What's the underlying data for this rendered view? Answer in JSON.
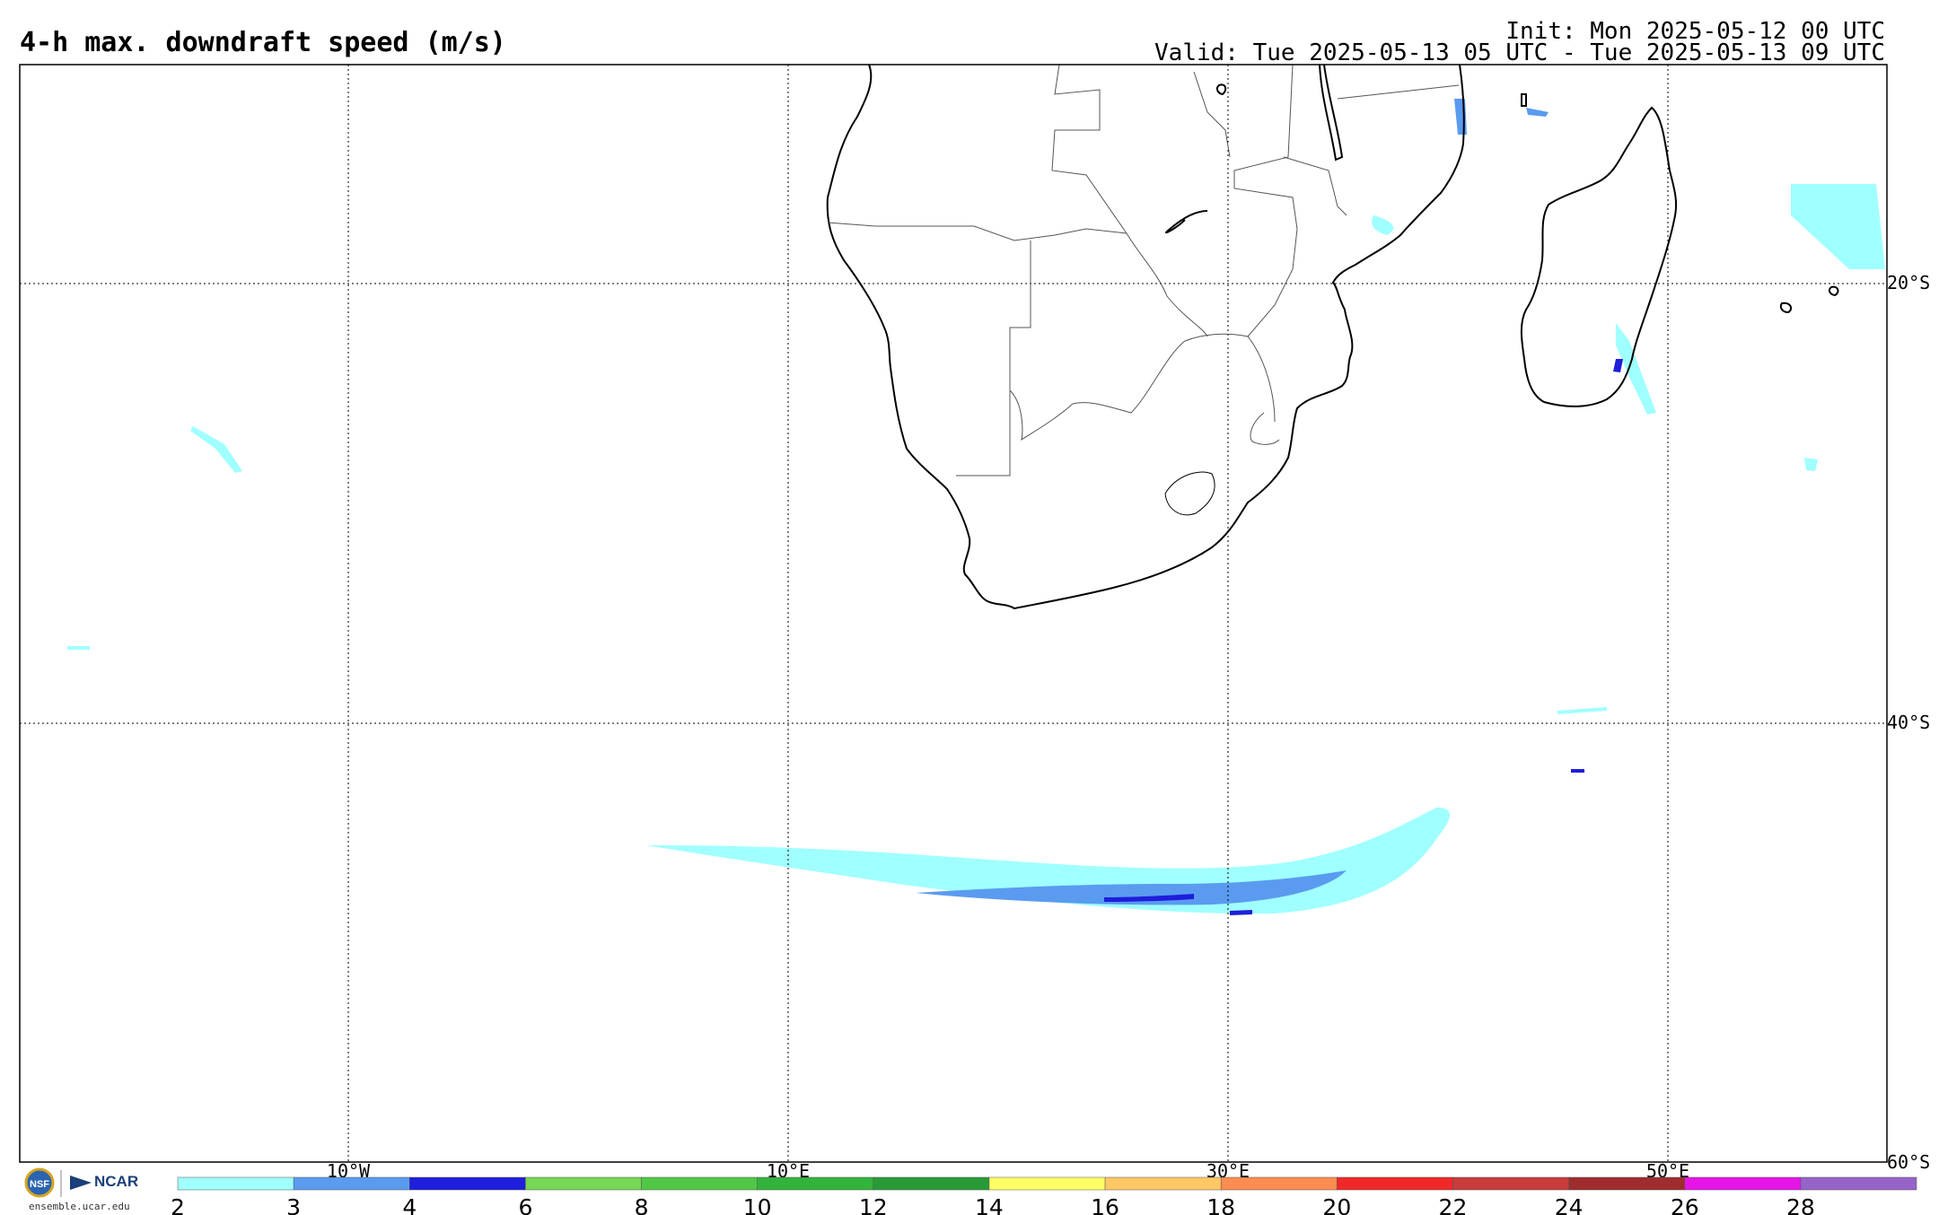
{
  "header": {
    "title": "4-h max. downdraft speed (m/s)",
    "init": "Init: Mon 2025-05-12 00 UTC",
    "valid": "Valid: Tue 2025-05-13 05 UTC - Tue 2025-05-13 09 UTC"
  },
  "map": {
    "lat_labels": [
      "20°S",
      "40°S",
      "60°S"
    ],
    "lon_labels": [
      "10°W",
      "10°E",
      "30°E",
      "50°E"
    ]
  },
  "colorbar": {
    "labels": [
      "2",
      "3",
      "4",
      "6",
      "8",
      "10",
      "12",
      "14",
      "16",
      "18",
      "20",
      "22",
      "24",
      "26",
      "28"
    ],
    "colors": [
      "#a0ffff",
      "#5a9bf0",
      "#1e1edc",
      "#78d755",
      "#50c846",
      "#32b43c",
      "#289b37",
      "#ffff66",
      "#ffc864",
      "#ff8c50",
      "#f02828",
      "#c83c3c",
      "#a02d2d",
      "#e614e6",
      "#9664c8"
    ]
  },
  "logo": {
    "badge": "NSF",
    "org": "NCAR",
    "url": "ensemble.ucar.edu"
  }
}
